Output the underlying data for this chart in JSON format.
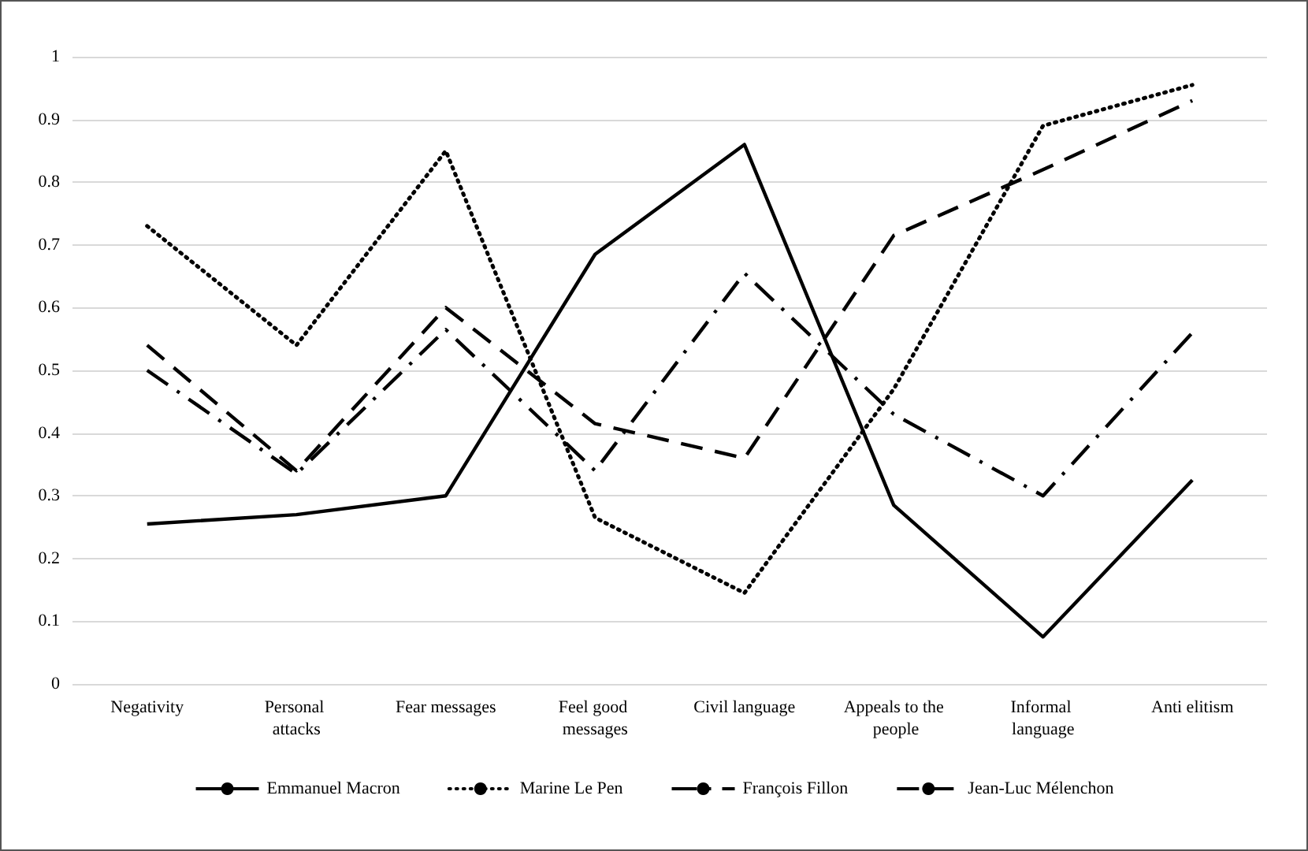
{
  "chart_data": {
    "type": "line",
    "categories": [
      "Negativity",
      "Personal attacks",
      "Fear messages",
      "Feel good messages",
      "Civil language",
      "Appeals to the people",
      "Informal language",
      "Anti elitism"
    ],
    "series": [
      {
        "name": "Emmanuel Macron",
        "color": "#000000",
        "line_style": "solid",
        "values": [
          0.255,
          0.27,
          0.3,
          0.685,
          0.86,
          0.285,
          0.075,
          0.325
        ]
      },
      {
        "name": "Marine Le Pen",
        "color": "#000000",
        "line_style": "dotted",
        "values": [
          0.73,
          0.54,
          0.85,
          0.265,
          0.145,
          0.47,
          0.89,
          0.955
        ]
      },
      {
        "name": "François Fillon",
        "color": "#000000",
        "line_style": "dashdot",
        "values": [
          0.5,
          0.335,
          0.565,
          0.34,
          0.655,
          0.43,
          0.3,
          0.56
        ]
      },
      {
        "name": "Jean-Luc Mélenchon",
        "color": "#000000",
        "line_style": "dashed",
        "values": [
          0.54,
          0.34,
          0.6,
          0.415,
          0.36,
          0.715,
          0.82,
          0.93
        ]
      }
    ],
    "ylim": [
      0,
      1
    ],
    "yticks": [
      0,
      0.1,
      0.2,
      0.3,
      0.4,
      0.5,
      0.6,
      0.7,
      0.8,
      0.9,
      1
    ],
    "grid": "y",
    "legend": "bottom",
    "marker": "none"
  }
}
